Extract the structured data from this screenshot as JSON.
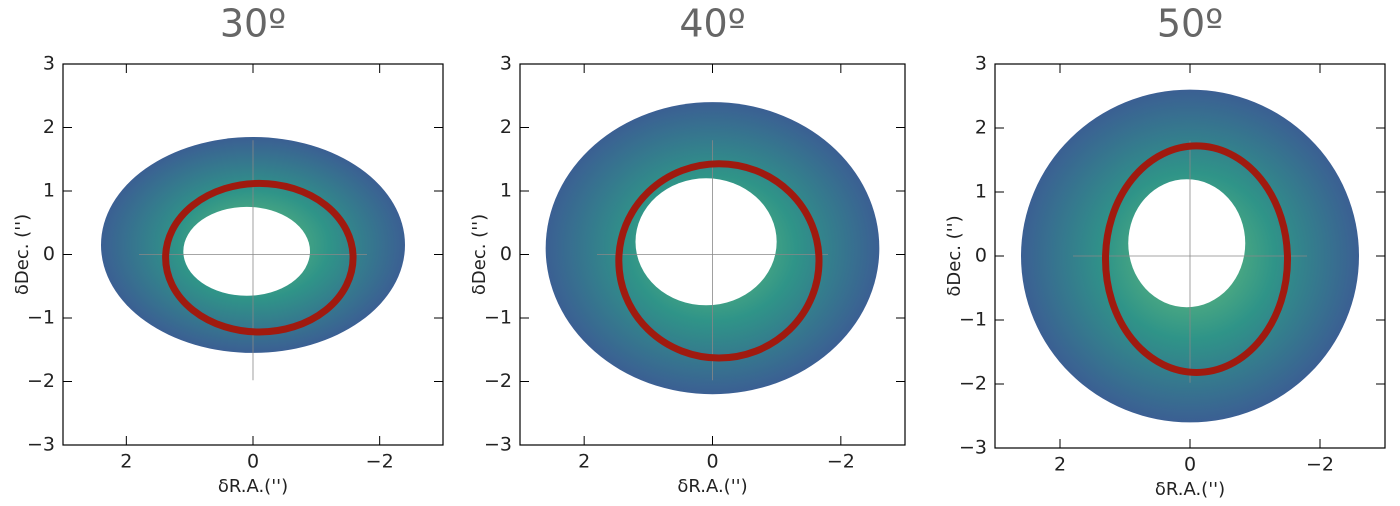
{
  "chart_data": [
    {
      "type": "map",
      "title": "30º",
      "xlabel": "δR.A.('')",
      "ylabel": "δDec. ('')",
      "xlim": [
        3,
        -3
      ],
      "ylim": [
        -3,
        3
      ],
      "xticks": [
        2,
        0,
        {
          "value": -2,
          "label": "−2"
        }
      ],
      "yticks": [
        {
          "value": -3,
          "label": "−3"
        },
        {
          "value": -2,
          "label": "−2"
        },
        {
          "value": -1,
          "label": "−1"
        },
        0,
        1,
        2,
        3
      ],
      "colormap": [
        "#6cc07a",
        "#2f9488",
        "#3b5f93"
      ],
      "emission_outer": {
        "x0": 0,
        "y0": 0.15,
        "rx": 2.4,
        "ry": 1.7
      },
      "emission_inner": {
        "x0": 0.1,
        "y0": 0.05,
        "rx": 1.0,
        "ry": 0.7
      },
      "ellipse": {
        "x0": -0.1,
        "y0": -0.05,
        "rx": 1.48,
        "ry": 1.17,
        "color": "#a01a0f"
      }
    },
    {
      "type": "map",
      "title": "40º",
      "xlabel": "δR.A.('')",
      "ylabel": "δDec. ('')",
      "xlim": [
        3,
        -3
      ],
      "ylim": [
        -3,
        3
      ],
      "xticks": [
        2,
        0,
        {
          "value": -2,
          "label": "−2"
        }
      ],
      "yticks": [
        {
          "value": -3,
          "label": "−3"
        },
        {
          "value": -2,
          "label": "−2"
        },
        {
          "value": -1,
          "label": "−1"
        },
        0,
        1,
        2,
        3
      ],
      "colormap": [
        "#6cc07a",
        "#2f9488",
        "#3b5f93"
      ],
      "emission_outer": {
        "x0": 0,
        "y0": 0.1,
        "rx": 2.6,
        "ry": 2.3
      },
      "emission_inner": {
        "x0": 0.1,
        "y0": 0.2,
        "rx": 1.1,
        "ry": 1.0
      },
      "ellipse": {
        "x0": -0.1,
        "y0": -0.1,
        "rx": 1.56,
        "ry": 1.53,
        "color": "#a01a0f"
      }
    },
    {
      "type": "map",
      "title": "50º",
      "xlabel": "δR.A.('')",
      "ylabel": "δDec. ('')",
      "xlim": [
        3,
        -3
      ],
      "ylim": [
        -3,
        3
      ],
      "xticks": [
        2,
        0,
        {
          "value": -2,
          "label": "−2"
        }
      ],
      "yticks": [
        {
          "value": -3,
          "label": "−3"
        },
        {
          "value": -2,
          "label": "−2"
        },
        {
          "value": -1,
          "label": "−1"
        },
        0,
        1,
        2,
        3
      ],
      "colormap": [
        "#6cc07a",
        "#2f9488",
        "#3b5f93"
      ],
      "emission_outer": {
        "x0": 0,
        "y0": 0,
        "rx": 2.6,
        "ry": 2.6
      },
      "emission_inner": {
        "x0": 0.05,
        "y0": 0.2,
        "rx": 0.9,
        "ry": 1.0
      },
      "ellipse": {
        "x0": -0.1,
        "y0": -0.05,
        "rx": 1.4,
        "ry": 1.77,
        "color": "#a01a0f"
      }
    }
  ]
}
